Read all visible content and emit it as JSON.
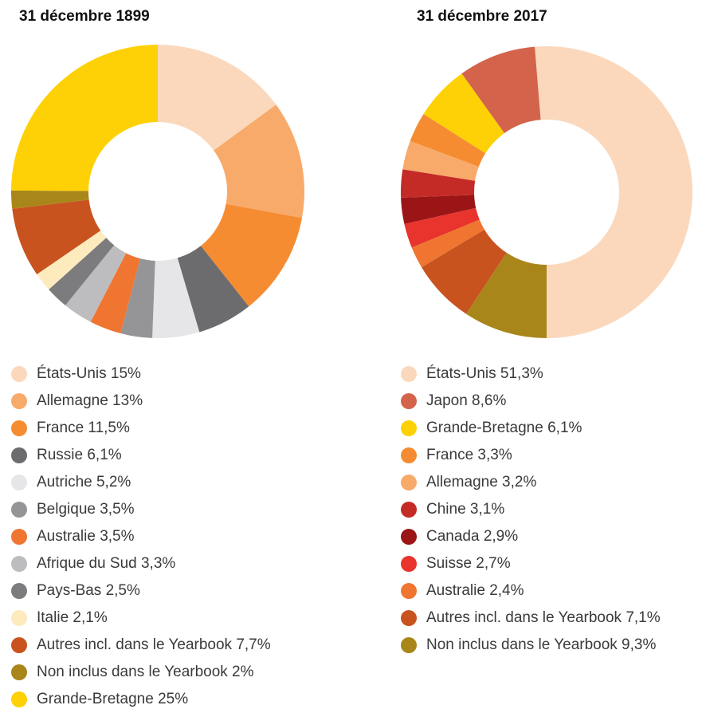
{
  "chart_data": [
    {
      "type": "pie",
      "title": "31 décembre 1899",
      "series": [
        {
          "label": "États-Unis 15%",
          "value": 15,
          "color": "#FBD8BC"
        },
        {
          "label": "Allemagne 13%",
          "value": 13,
          "color": "#F8AA6A"
        },
        {
          "label": "France 11,5%",
          "value": 11.5,
          "color": "#F58C32"
        },
        {
          "label": "Russie 6,1%",
          "value": 6.1,
          "color": "#6C6C6F"
        },
        {
          "label": "Autriche 5,2%",
          "value": 5.2,
          "color": "#E6E6E8"
        },
        {
          "label": "Belgique 3,5%",
          "value": 3.5,
          "color": "#959597"
        },
        {
          "label": "Australie 3,5%",
          "value": 3.5,
          "color": "#F07531"
        },
        {
          "label": "Afrique du Sud 3,3%",
          "value": 3.3,
          "color": "#BDBDBF"
        },
        {
          "label": "Pays-Bas 2,5%",
          "value": 2.5,
          "color": "#7C7C7F"
        },
        {
          "label": "Italie 2,1%",
          "value": 2.1,
          "color": "#FDEBBE"
        },
        {
          "label": "Autres incl. dans le Yearbook 7,7%",
          "value": 7.7,
          "color": "#C9531F"
        },
        {
          "label": "Non inclus dans le Yearbook 2%",
          "value": 2,
          "color": "#A9861A"
        },
        {
          "label": "Grande-Bretagne 25%",
          "value": 25,
          "color": "#FDD106"
        }
      ]
    },
    {
      "type": "pie",
      "title": "31 décembre 2017",
      "series": [
        {
          "label": "États-Unis 51,3%",
          "value": 51.3,
          "color": "#FBD8BC"
        },
        {
          "label": "Japon 8,6%",
          "value": 8.6,
          "color": "#D3644B"
        },
        {
          "label": "Grande-Bretagne 6,1%",
          "value": 6.1,
          "color": "#FDD106"
        },
        {
          "label": "France 3,3%",
          "value": 3.3,
          "color": "#F58C32"
        },
        {
          "label": "Allemagne 3,2%",
          "value": 3.2,
          "color": "#F8AA6A"
        },
        {
          "label": "Chine 3,1%",
          "value": 3.1,
          "color": "#C42B26"
        },
        {
          "label": "Canada 2,9%",
          "value": 2.9,
          "color": "#9B1517"
        },
        {
          "label": "Suisse 2,7%",
          "value": 2.7,
          "color": "#E8342C"
        },
        {
          "label": "Australie 2,4%",
          "value": 2.4,
          "color": "#F07531"
        },
        {
          "label": "Autres incl. dans le Yearbook 7,1%",
          "value": 7.1,
          "color": "#C9531F"
        },
        {
          "label": "Non inclus dans le Yearbook 9,3%",
          "value": 9.3,
          "color": "#A9861A"
        }
      ]
    }
  ]
}
